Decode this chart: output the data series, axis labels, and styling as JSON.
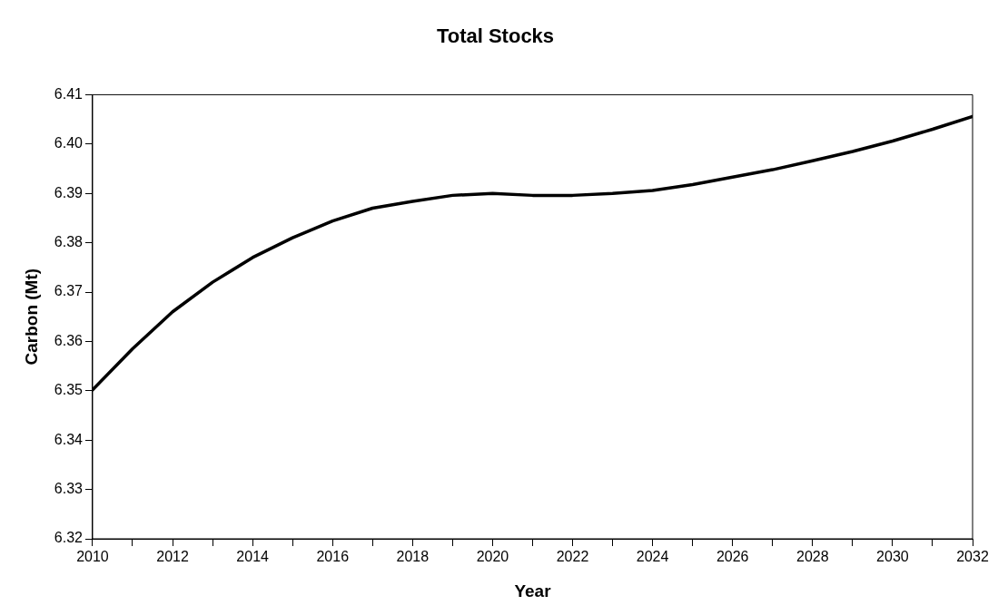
{
  "chart_data": {
    "type": "line",
    "title": "Total Stocks",
    "xlabel": "Year",
    "ylabel": "Carbon (Mt)",
    "x": [
      2010,
      2011,
      2012,
      2013,
      2014,
      2015,
      2016,
      2017,
      2018,
      2019,
      2020,
      2021,
      2022,
      2023,
      2024,
      2025,
      2026,
      2027,
      2028,
      2029,
      2030,
      2031,
      2032
    ],
    "series": [
      {
        "color": "#000000",
        "values": [
          6.3502,
          6.3585,
          6.366,
          6.372,
          6.377,
          6.381,
          6.3844,
          6.387,
          6.3884,
          6.3896,
          6.39,
          6.3896,
          6.3896,
          6.39,
          6.3906,
          6.3918,
          6.3933,
          6.3948,
          6.3966,
          6.3985,
          6.4006,
          6.403,
          6.4056
        ]
      }
    ],
    "xlim": [
      2010,
      2032
    ],
    "xticks": [
      2010,
      {
        "value": 2011,
        "label": null
      },
      2012,
      {
        "value": 2013,
        "label": null
      },
      2014,
      {
        "value": 2015,
        "label": null
      },
      2016,
      {
        "value": 2017,
        "label": null
      },
      2018,
      {
        "value": 2019,
        "label": null
      },
      2020,
      {
        "value": 2021,
        "label": null
      },
      2022,
      {
        "value": 2023,
        "label": null
      },
      2024,
      {
        "value": 2025,
        "label": null
      },
      2026,
      {
        "value": 2027,
        "label": null
      },
      2028,
      {
        "value": 2029,
        "label": null
      },
      2030,
      {
        "value": 2031,
        "label": null
      },
      2032
    ],
    "ylim": [
      6.32,
      6.41
    ],
    "yticks": [
      {
        "value": 6.32,
        "label": "6.32"
      },
      {
        "value": 6.33,
        "label": "6.33"
      },
      {
        "value": 6.34,
        "label": "6.34"
      },
      {
        "value": 6.35,
        "label": "6.35"
      },
      {
        "value": 6.36,
        "label": "6.36"
      },
      {
        "value": 6.37,
        "label": "6.37"
      },
      {
        "value": 6.38,
        "label": "6.38"
      },
      {
        "value": 6.39,
        "label": "6.39"
      },
      {
        "value": 6.4,
        "label": "6.40"
      },
      {
        "value": 6.41,
        "label": "6.41"
      }
    ],
    "grid": false,
    "legend": false,
    "marker": "none",
    "line_style": "solid"
  }
}
